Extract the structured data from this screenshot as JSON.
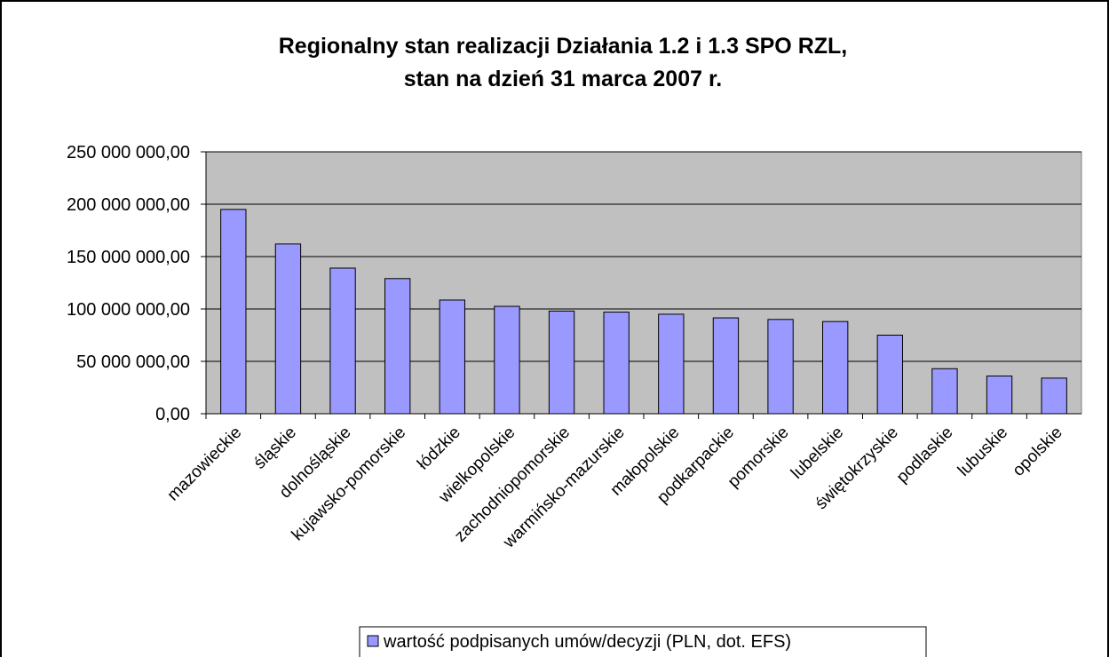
{
  "chart_data": {
    "type": "bar",
    "title": "Regionalny stan realizacji Działania 1.2 i 1.3 SPO RZL,",
    "subtitle": "stan na dzień 31 marca 2007 r.",
    "categories": [
      "mazowieckie",
      "śląskie",
      "dolnośląskie",
      "kujawsko-pomorskie",
      "łódzkie",
      "wielkopolskie",
      "zachodniopomorskie",
      "warmińsko-mazurskie",
      "małopolskie",
      "podkarpackie",
      "pomorskie",
      "lubelskie",
      "świętokrzyskie",
      "podlaskie",
      "lubuskie",
      "opolskie"
    ],
    "series": [
      {
        "name": "wartość podpisanych umów/decyzji (PLN, dot. EFS)",
        "color": "#9999ff",
        "values": [
          195000000,
          162000000,
          139000000,
          129000000,
          108500000,
          102500000,
          98000000,
          97000000,
          95000000,
          91500000,
          90000000,
          88000000,
          75000000,
          43000000,
          36000000,
          34000000
        ]
      }
    ],
    "ylim": [
      0,
      250000000
    ],
    "yticks": [
      {
        "value": 0,
        "label": "0,00"
      },
      {
        "value": 50000000,
        "label": "50 000 000,00"
      },
      {
        "value": 100000000,
        "label": "100 000 000,00"
      },
      {
        "value": 150000000,
        "label": "150 000 000,00"
      },
      {
        "value": 200000000,
        "label": "200 000 000,00"
      },
      {
        "value": 250000000,
        "label": "250 000 000,00"
      }
    ],
    "grid": true,
    "legend": "bottom"
  }
}
